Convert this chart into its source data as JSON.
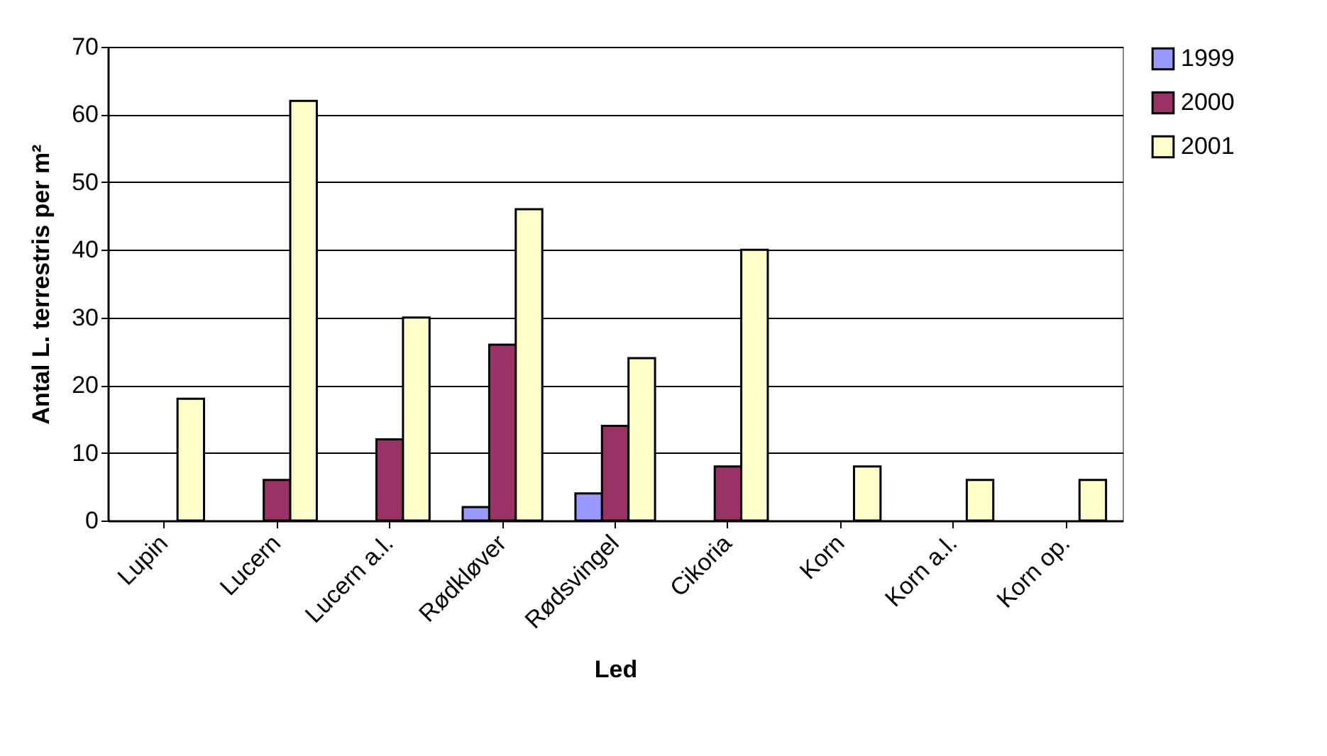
{
  "chart_data": {
    "type": "bar",
    "xlabel": "Led",
    "ylabel": "Antal L. terrestris per m²",
    "categories": [
      "Lupin",
      "Lucern",
      "Lucern a.l.",
      "Rødkløver",
      "Rødsvingel",
      "Cikoria",
      "Korn",
      "Korn a.l.",
      "Korn op."
    ],
    "series": [
      {
        "name": "1999",
        "color": "#9999ff",
        "values": [
          null,
          null,
          null,
          2,
          4,
          null,
          null,
          null,
          null
        ]
      },
      {
        "name": "2000",
        "color": "#993366",
        "values": [
          null,
          6,
          12,
          26,
          14,
          8,
          null,
          null,
          null
        ]
      },
      {
        "name": "2001",
        "color": "#ffffcc",
        "values": [
          18,
          62,
          30,
          46,
          24,
          40,
          8,
          6,
          6
        ]
      }
    ],
    "ylim": [
      0,
      70
    ],
    "yticks": [
      0,
      10,
      20,
      30,
      40,
      50,
      60,
      70
    ],
    "grid": "y",
    "legend": "right"
  }
}
